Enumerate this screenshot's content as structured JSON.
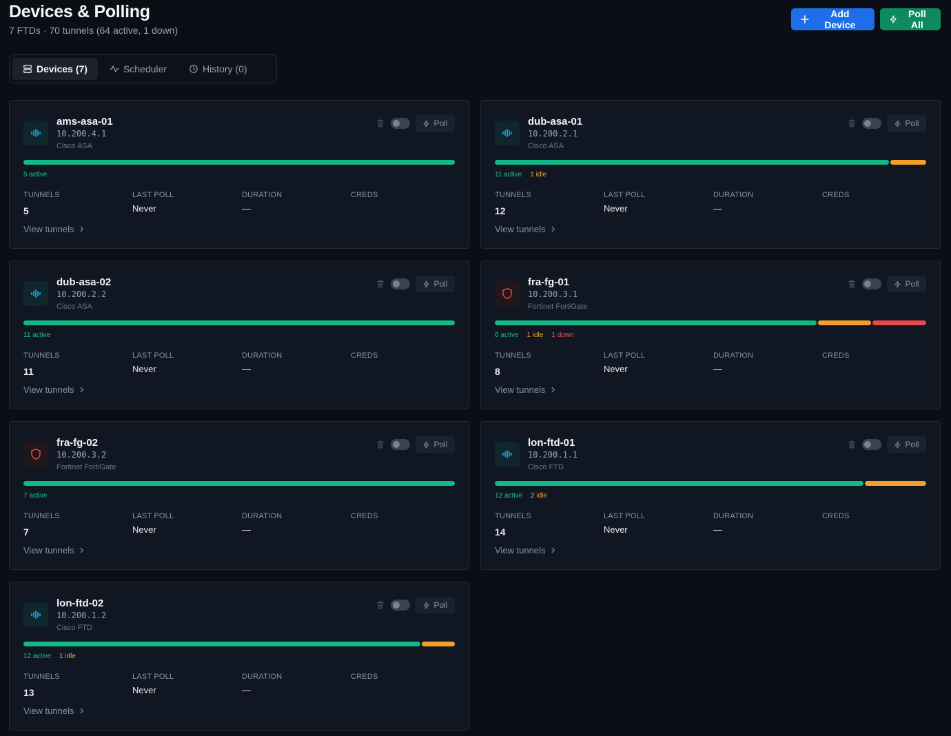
{
  "header": {
    "title": "Devices & Polling",
    "subtitle": "7 FTDs · 70 tunnels (64 active, 1 down)",
    "add_device_label": "Add Device",
    "poll_all_label": "Poll All"
  },
  "tabs": [
    {
      "label": "Devices (7)",
      "icon": "server-icon",
      "active": true
    },
    {
      "label": "Scheduler",
      "icon": "activity-icon",
      "active": false
    },
    {
      "label": "History (0)",
      "icon": "clock-icon",
      "active": false
    }
  ],
  "labels": {
    "poll": "Poll",
    "tunnels": "TUNNELS",
    "last_poll": "LAST POLL",
    "duration": "DURATION",
    "creds": "CREDS",
    "view_tunnels": "View tunnels"
  },
  "colors": {
    "active": "#12b886",
    "idle": "#f59f28",
    "down": "#e5484d",
    "primary": "#1d6ee8",
    "success": "#0d8a5f",
    "cisco_icon": "#1aa3d9",
    "forti_icon": "#e5484d"
  },
  "devices": [
    {
      "name": "ams-asa-01",
      "ip": "10.200.4.1",
      "type": "Cisco ASA",
      "icon": "cisco-bars-icon",
      "enabled": false,
      "active": 5,
      "idle": 0,
      "down": 0,
      "active_text": "5 active",
      "idle_text": "",
      "down_text": "",
      "tunnels": "5",
      "last_poll": "Never",
      "duration": "—",
      "creds": ""
    },
    {
      "name": "dub-asa-01",
      "ip": "10.200.2.1",
      "type": "Cisco ASA",
      "icon": "cisco-bars-icon",
      "enabled": false,
      "active": 11,
      "idle": 1,
      "down": 0,
      "active_text": "11 active",
      "idle_text": "1 idle",
      "down_text": "",
      "tunnels": "12",
      "last_poll": "Never",
      "duration": "—",
      "creds": ""
    },
    {
      "name": "dub-asa-02",
      "ip": "10.200.2.2",
      "type": "Cisco ASA",
      "icon": "cisco-bars-icon",
      "enabled": false,
      "active": 11,
      "idle": 0,
      "down": 0,
      "active_text": "11 active",
      "idle_text": "",
      "down_text": "",
      "tunnels": "11",
      "last_poll": "Never",
      "duration": "—",
      "creds": ""
    },
    {
      "name": "fra-fg-01",
      "ip": "10.200.3.1",
      "type": "Fortinet FortiGate",
      "icon": "shield-icon",
      "enabled": false,
      "active": 6,
      "idle": 1,
      "down": 1,
      "active_text": "6 active",
      "idle_text": "1 idle",
      "down_text": "1 down",
      "tunnels": "8",
      "last_poll": "Never",
      "duration": "—",
      "creds": ""
    },
    {
      "name": "fra-fg-02",
      "ip": "10.200.3.2",
      "type": "Fortinet FortiGate",
      "icon": "shield-icon",
      "enabled": false,
      "active": 7,
      "idle": 0,
      "down": 0,
      "active_text": "7 active",
      "idle_text": "",
      "down_text": "",
      "tunnels": "7",
      "last_poll": "Never",
      "duration": "—",
      "creds": ""
    },
    {
      "name": "lon-ftd-01",
      "ip": "10.200.1.1",
      "type": "Cisco FTD",
      "icon": "cisco-bars-icon",
      "enabled": false,
      "active": 12,
      "idle": 2,
      "down": 0,
      "active_text": "12 active",
      "idle_text": "2 idle",
      "down_text": "",
      "tunnels": "14",
      "last_poll": "Never",
      "duration": "—",
      "creds": ""
    },
    {
      "name": "lon-ftd-02",
      "ip": "10.200.1.2",
      "type": "Cisco FTD",
      "icon": "cisco-bars-icon",
      "enabled": false,
      "active": 12,
      "idle": 1,
      "down": 0,
      "active_text": "12 active",
      "idle_text": "1 idle",
      "down_text": "",
      "tunnels": "13",
      "last_poll": "Never",
      "duration": "—",
      "creds": ""
    }
  ]
}
